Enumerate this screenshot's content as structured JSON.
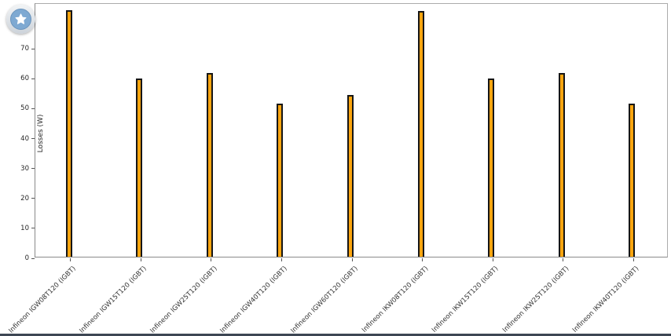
{
  "badge": {
    "icon": "star",
    "circle_color": "#7ea9d2",
    "ring_color": "#d4dae1",
    "star_color": "#ffffff"
  },
  "chart_data": {
    "type": "bar",
    "categories": [
      "Infineon IGW08T120 (IGBT)",
      "Infineon IGW15T120 (IGBT)",
      "Infineon IGW25T120 (IGBT)",
      "Infineon IGW40T120 (IGBT)",
      "Infineon IGW60T120 (IGBT)",
      "Infineon IKW08T120 (IGBT)",
      "Infineon IKW15T120 (IGBT)",
      "Infineon IKW25T120 (IGBT)",
      "Infineon IKW40T120 (IGBT)"
    ],
    "values": [
      82.3,
      59.6,
      61.5,
      51.1,
      54.0,
      82.1,
      59.6,
      61.5,
      51.1
    ],
    "title": "",
    "xlabel": "",
    "ylabel": "Losses (W)",
    "ylim": [
      0,
      85
    ],
    "yticks": [
      0,
      10,
      20,
      30,
      40,
      50,
      60,
      70
    ],
    "grid": false,
    "legend": null,
    "bar_color": "#fba50f",
    "bar_edge_color": "#161616"
  },
  "window": {
    "bottom_edge_color": "#3d4653"
  }
}
